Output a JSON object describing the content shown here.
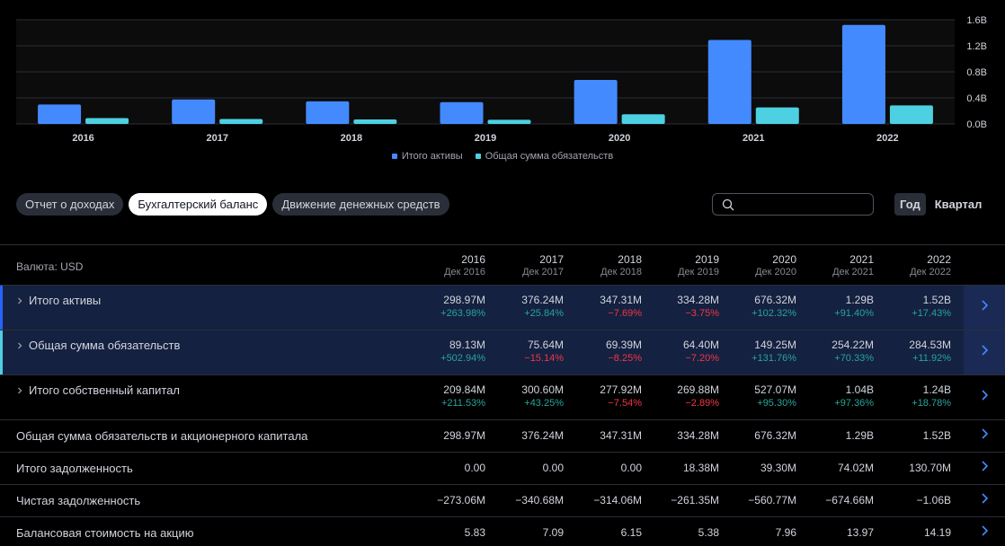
{
  "chart_data": {
    "type": "bar",
    "categories": [
      "2016",
      "2017",
      "2018",
      "2019",
      "2020",
      "2021",
      "2022"
    ],
    "series": [
      {
        "name": "Итого активы",
        "values": [
          0.299,
          0.376,
          0.347,
          0.334,
          0.676,
          1.29,
          1.52
        ],
        "color": "#448aff"
      },
      {
        "name": "Общая сумма обязательств",
        "values": [
          0.089,
          0.076,
          0.069,
          0.064,
          0.149,
          0.254,
          0.285
        ],
        "color": "#4dd0e1"
      }
    ],
    "ytick_values": [
      0,
      0.4,
      0.8,
      1.2,
      1.6
    ],
    "yticks": [
      "0.0B",
      "0.4B",
      "0.8B",
      "1.2B",
      "1.6B"
    ],
    "ylim": [
      0,
      1.6
    ],
    "title": "",
    "xlabel": "",
    "ylabel": "",
    "grid": true,
    "legend": "bottom-center"
  },
  "tabs": [
    {
      "label": "Отчет о доходах"
    },
    {
      "label": "Бухгалтерский баланс"
    },
    {
      "label": "Движение денежных средств"
    }
  ],
  "search": {
    "placeholder": "",
    "value": ""
  },
  "period": {
    "year": "Год",
    "quarter": "Квартал"
  },
  "table": {
    "currency": "Валюта: USD",
    "columns": [
      {
        "year": "2016",
        "month": "Дек 2016"
      },
      {
        "year": "2017",
        "month": "Дек 2017"
      },
      {
        "year": "2018",
        "month": "Дек 2018"
      },
      {
        "year": "2019",
        "month": "Дек 2019"
      },
      {
        "year": "2020",
        "month": "Дек 2020"
      },
      {
        "year": "2021",
        "month": "Дек 2021"
      },
      {
        "year": "2022",
        "month": "Дек 2022"
      }
    ],
    "rows": [
      {
        "label": "Итого активы",
        "values": [
          "298.97M",
          "376.24M",
          "347.31M",
          "334.28M",
          "676.32M",
          "1.29B",
          "1.52B"
        ],
        "changes": [
          "+263.98%",
          "+25.84%",
          "−7.69%",
          "−3.75%",
          "+102.32%",
          "+91.40%",
          "+17.43%"
        ]
      },
      {
        "label": "Общая сумма обязательств",
        "values": [
          "89.13M",
          "75.64M",
          "69.39M",
          "64.40M",
          "149.25M",
          "254.22M",
          "284.53M"
        ],
        "changes": [
          "+502.94%",
          "−15.14%",
          "−8.25%",
          "−7.20%",
          "+131.76%",
          "+70.33%",
          "+11.92%"
        ]
      },
      {
        "label": "Итого собственный капитал",
        "values": [
          "209.84M",
          "300.60M",
          "277.92M",
          "269.88M",
          "527.07M",
          "1.04B",
          "1.24B"
        ],
        "changes": [
          "+211.53%",
          "+43.25%",
          "−7.54%",
          "−2.89%",
          "+95.30%",
          "+97.36%",
          "+18.78%"
        ]
      },
      {
        "label": "Общая сумма обязательств и акционерного капитала",
        "values": [
          "298.97M",
          "376.24M",
          "347.31M",
          "334.28M",
          "676.32M",
          "1.29B",
          "1.52B"
        ]
      },
      {
        "label": "Итого задолженность",
        "values": [
          "0.00",
          "0.00",
          "0.00",
          "18.38M",
          "39.30M",
          "74.02M",
          "130.70M"
        ]
      },
      {
        "label": "Чистая задолженность",
        "values": [
          "−273.06M",
          "−340.68M",
          "−314.06M",
          "−261.35M",
          "−560.77M",
          "−674.66M",
          "−1.06B"
        ]
      },
      {
        "label": "Балансовая стоимость на акцию",
        "values": [
          "5.83",
          "7.09",
          "6.15",
          "5.38",
          "7.96",
          "13.97",
          "14.19"
        ]
      }
    ]
  }
}
